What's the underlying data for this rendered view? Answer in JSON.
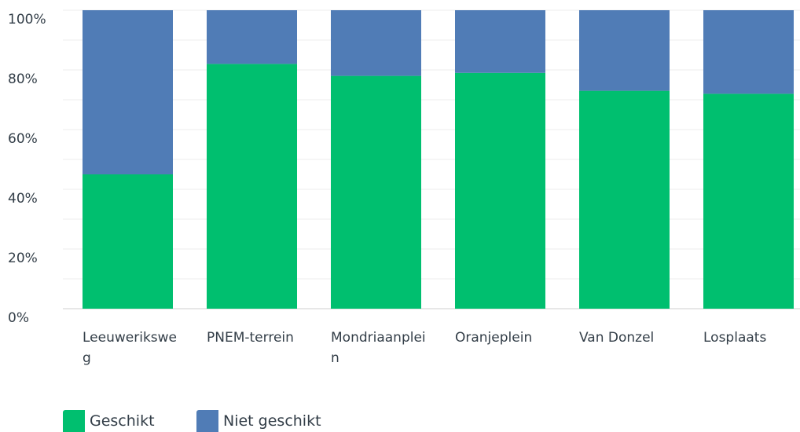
{
  "chart_data": {
    "type": "stacked_bar",
    "categories": [
      "Leeuweriksweg",
      "PNEM-terrein",
      "Mondriaanplein",
      "Oranjeplein",
      "Van Donzel",
      "Losplaats"
    ],
    "series": [
      {
        "name": "Geschikt",
        "color": "#00bf6f",
        "values": [
          45,
          82,
          78,
          79,
          73,
          72
        ]
      },
      {
        "name": "Niet geschikt",
        "color": "#507cb6",
        "values": [
          55,
          18,
          22,
          21,
          27,
          28
        ]
      }
    ],
    "ylim": [
      0,
      100
    ],
    "yticks": [
      {
        "value": 0,
        "label": "0%"
      },
      {
        "value": 20,
        "label": "20%"
      },
      {
        "value": 40,
        "label": "40%"
      },
      {
        "value": 60,
        "label": "60%"
      },
      {
        "value": 80,
        "label": "80%"
      },
      {
        "value": 100,
        "label": "100%"
      }
    ],
    "grid": true
  }
}
